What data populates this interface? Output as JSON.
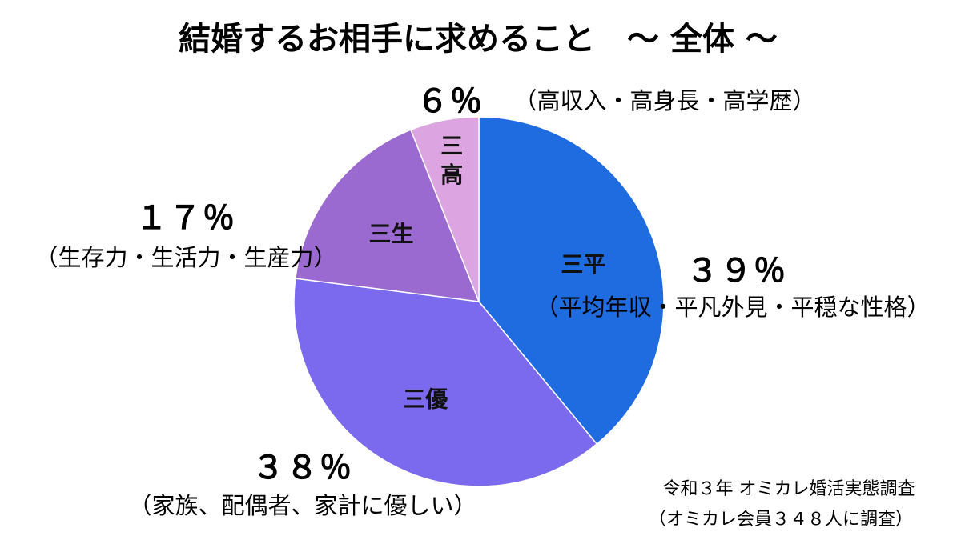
{
  "chart_data": {
    "type": "pie",
    "title": "結婚するお相手に求めること　～ 全体 ～",
    "slices": [
      {
        "key": "heibon",
        "name": "三平",
        "value": 39,
        "percent_label": "３９％",
        "description": "（平均年収・平凡外見・平穏な性格）",
        "color": "#1f6be0"
      },
      {
        "key": "yasashii",
        "name": "三優",
        "value": 38,
        "percent_label": "３８％",
        "description": "（家族、配偶者、家計に優しい）",
        "color": "#7b6aee"
      },
      {
        "key": "seikatsu",
        "name": "三生",
        "value": 17,
        "percent_label": "１７％",
        "description": "（生存力・生活力・生産力）",
        "color": "#9b6ad0"
      },
      {
        "key": "sankou",
        "name": "三高",
        "value": 6,
        "percent_label": "６％",
        "description": "（高収入・高身長・高学歴）",
        "color": "#dca4e0"
      }
    ]
  },
  "source": {
    "line1": "令和３年 オミカレ婚活実態調査",
    "line2": "（オミカレ会員３４８人に調査）"
  }
}
